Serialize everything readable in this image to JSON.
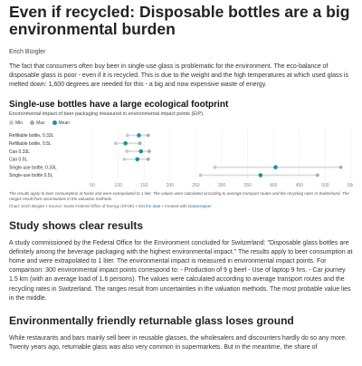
{
  "article": {
    "title": "Even if recycled: Disposable bottles are a big environmental burden",
    "author": "Erich Bürgler",
    "intro": "The fact that consumers often buy beer in single-use glass is problematic for the environment. The eco-balance of disposable glass is poor - even if it is recycled. This is due to the weight and the high temperatures at which used glass is melted down: 1,600 degrees are needed for this - a big and now expensive waste of energy."
  },
  "chart": {
    "title": "Single-use bottles have a large ecological footprint",
    "subtitle": "Environmental impact of beer packaging measured in environmental impact points (EIP).",
    "legend": {
      "min": "Min",
      "max": "Max",
      "mean": "Mean"
    },
    "note": "The results apply to beer consumption at home and were extrapolated to 1 liter. The values were calculated according to average transport routes and the recycling rates in Switzerland. The ranges result from uncertainties in the valuation methods.",
    "credit_prefix": "Chart: Erich Bürgler • Source: Swiss Federal Office of Energy (SFOE) • ",
    "credit_data": "Get the data",
    "credit_mid": " • Created with ",
    "credit_tool": "Datawrapper"
  },
  "chart_data": {
    "type": "range-dot",
    "title": "Single-use bottles have a large ecological footprint",
    "xlim": [
      50,
      550
    ],
    "xticks": [
      50,
      100,
      150,
      200,
      250,
      300,
      350,
      400,
      450,
      500,
      550
    ],
    "categories": [
      "Refillable bottle, 0.33L",
      "Refillable bottle, 0.5L",
      "Can 0.33L",
      "Can 0.5L",
      "Single-use bottle, 0.33L",
      "Single-use bottle 0.5L"
    ],
    "series": [
      {
        "name": "Min",
        "values": [
          118,
          95,
          117,
          112,
          287,
          259
        ]
      },
      {
        "name": "Max",
        "values": [
          158,
          142,
          160,
          158,
          530,
          485
        ]
      },
      {
        "name": "Mean",
        "values": [
          140,
          114,
          144,
          137,
          404,
          375
        ]
      }
    ],
    "colors": {
      "min": "#c8c8c8",
      "max": "#a9a9a9",
      "mean": "#1b8fa3",
      "range": "#dcdcdc"
    }
  },
  "sections": [
    {
      "heading": "Study shows clear results",
      "text": "A study commissioned by the Federal Office for the Environment concluded for Switzerland: \"Disposable glass bottles are definitely among the beverage packaging with the highest environmental impact.\" The results apply to beer consumption at home and were extrapolated to 1 liter. The environmental impact is measured in environmental impact points. For comparison: 300 environmental impact points correspond to: - Production of 9 g beef - Use of laptop 9 hrs. - Car journey 1.5 km (with an average load of 1.6 persons). The values were calculated according to average transport routes and the recycling rates in Switzerland. The ranges result from uncertainties in the valuation methods. The most probable value lies in the middle."
    },
    {
      "heading": "Environmentally friendly returnable glass loses ground",
      "text": "While restaurants and bars mainly sell beer in reusable glasses, the wholesalers and discounters hardly do so any more. Twenty years ago, returnable glass was also very common in supermarkets. But in the meantime, the share of"
    }
  ]
}
